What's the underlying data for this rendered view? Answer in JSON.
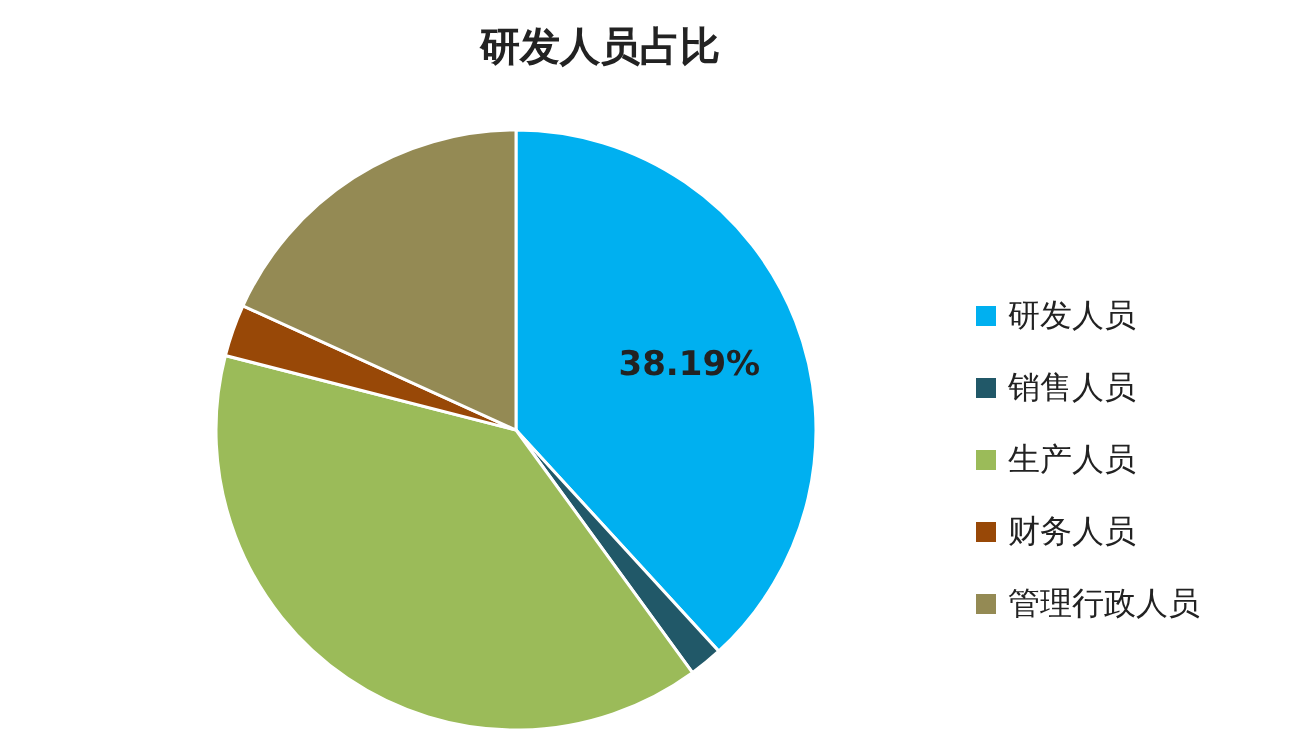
{
  "chart_data": {
    "type": "pie",
    "title": "研发人员占比",
    "categories": [
      "研发人员",
      "销售人员",
      "生产人员",
      "财务人员",
      "管理行政人员"
    ],
    "values": [
      38.19,
      1.8,
      39.0,
      2.8,
      18.21
    ],
    "colors": [
      "#00b0f0",
      "#215868",
      "#9bbb59",
      "#984807",
      "#948a54"
    ],
    "value_labels": [
      "38.19%",
      null,
      null,
      null,
      null
    ],
    "legend": "right"
  }
}
